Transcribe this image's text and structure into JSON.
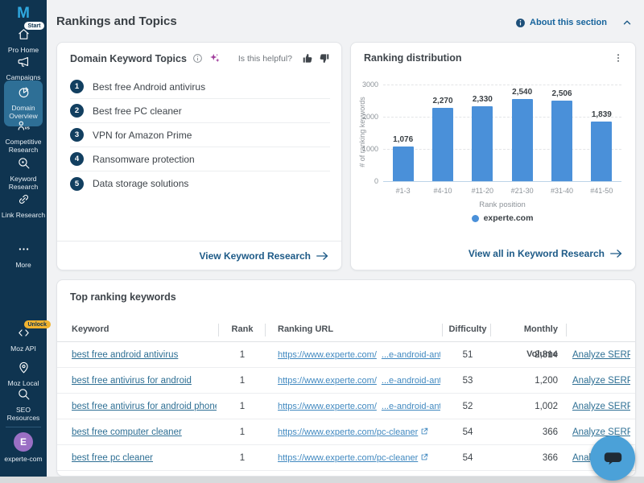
{
  "colors": {
    "sidebar_bg": "#0f3450",
    "sidebar_selected": "#2e6f96",
    "brand_blue": "#2fa8e0",
    "link_blue": "#1d5a87",
    "table_link_blue": "#2e6f94",
    "url_link_blue": "#4189c0",
    "bar_blue": "#4a90d9",
    "unlock_badge_yellow": "#f0b330",
    "avatar_purple": "#9a6fc4",
    "chat_button_blue": "#4ba1d8"
  },
  "sidebar": {
    "logo": "M",
    "items": [
      {
        "label": "Pro Home",
        "icon": "home-icon",
        "badge": "Start",
        "selected": false
      },
      {
        "label": "Campaigns",
        "icon": "megaphone-icon",
        "selected": false
      },
      {
        "label": "Domain Overview",
        "icon": "pie-chart-icon",
        "selected": true
      },
      {
        "label": "Competitive Research",
        "icon": "vs-icon",
        "selected": false
      },
      {
        "label": "Keyword Research",
        "icon": "keyword-search-icon",
        "selected": false
      },
      {
        "label": "Link Research",
        "icon": "link-icon",
        "selected": false
      },
      {
        "label": "More",
        "icon": "ellipsis-icon",
        "selected": false
      },
      {
        "label": "Moz API",
        "icon": "code-icon",
        "badge": "Unlock",
        "selected": false
      },
      {
        "label": "Moz Local",
        "icon": "location-pin-icon",
        "selected": false
      },
      {
        "label": "SEO Resources",
        "icon": "search-icon",
        "selected": false
      }
    ],
    "account": {
      "label": "experte-com",
      "avatar_letter": "E"
    }
  },
  "header": {
    "title": "Rankings and Topics",
    "about_link": "About this section"
  },
  "topics_card": {
    "title": "Domain Keyword Topics",
    "helpful_label": "Is this helpful?",
    "items": [
      "Best free Android antivirus",
      "Best free PC cleaner",
      "VPN for Amazon Prime",
      "Ransomware protection",
      "Data storage solutions"
    ],
    "footer_link": "View Keyword Research"
  },
  "chart_card": {
    "title": "Ranking distribution",
    "footer_link": "View all in Keyword Research"
  },
  "chart_data": {
    "type": "bar",
    "title": "Ranking distribution",
    "categories": [
      "#1-3",
      "#4-10",
      "#11-20",
      "#21-30",
      "#31-40",
      "#41-50"
    ],
    "values": [
      1076,
      2270,
      2330,
      2540,
      2506,
      1839
    ],
    "xlabel": "Rank position",
    "ylabel": "# of ranking keywords",
    "ylim": [
      0,
      3000
    ],
    "yticks": [
      0,
      1000,
      2000,
      3000
    ],
    "grid": true,
    "legend": [
      "experte.com"
    ],
    "legend_position": "bottom",
    "bar_color": "#4a90d9"
  },
  "table_card": {
    "title": "Top ranking keywords",
    "columns": [
      "Keyword",
      "Rank",
      "Ranking URL",
      "Difficulty",
      "Monthly Volume",
      ""
    ],
    "rows": [
      {
        "keyword": "best free android antivirus",
        "rank": "1",
        "url_prefix": "https://www.experte.com/",
        "url_suffix": "...e-android-antivirus",
        "difficulty": "51",
        "volume": "2,314",
        "action": "Analyze SERP"
      },
      {
        "keyword": "best free antivirus for android",
        "rank": "1",
        "url_prefix": "https://www.experte.com/",
        "url_suffix": "...e-android-antivirus",
        "difficulty": "53",
        "volume": "1,200",
        "action": "Analyze SERP"
      },
      {
        "keyword": "best free antivirus for android phone",
        "rank": "1",
        "url_prefix": "https://www.experte.com/",
        "url_suffix": "...e-android-antivirus",
        "difficulty": "52",
        "volume": "1,002",
        "action": "Analyze SERP"
      },
      {
        "keyword": "best free computer cleaner",
        "rank": "1",
        "url_prefix": "https://www.experte.com/pc-cleaner",
        "url_suffix": "",
        "difficulty": "54",
        "volume": "366",
        "action": "Analyze SERP"
      },
      {
        "keyword": "best free pc cleaner",
        "rank": "1",
        "url_prefix": "https://www.experte.com/pc-cleaner",
        "url_suffix": "",
        "difficulty": "54",
        "volume": "366",
        "action": "Analyze SERP"
      }
    ]
  }
}
